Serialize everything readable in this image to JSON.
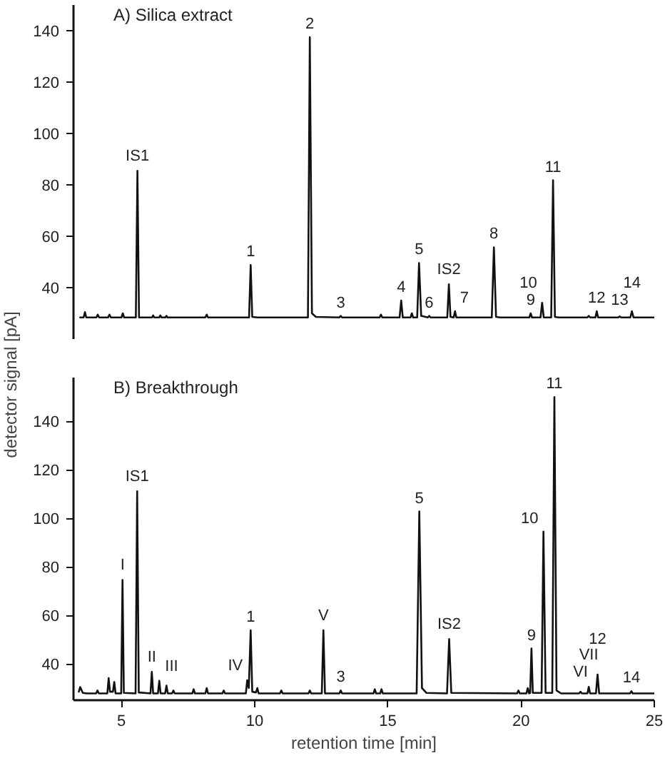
{
  "chart_data": [
    {
      "type": "line",
      "title": "A) Silica extract",
      "ylabel": "detector signal [pA]",
      "xlim": [
        3.2,
        25
      ],
      "ylim": [
        20,
        150
      ],
      "yticks": [
        40,
        60,
        80,
        100,
        120,
        140
      ],
      "xticks": [
        5,
        10,
        15,
        20,
        25
      ],
      "tick_labels": "y",
      "x": [
        3.45,
        3.58,
        3.63,
        3.68,
        4.06,
        4.11,
        4.16,
        4.5,
        4.55,
        4.6,
        5.0,
        5.05,
        5.1,
        5.54,
        5.6,
        5.66,
        6.15,
        6.19,
        6.23,
        6.42,
        6.46,
        6.5,
        6.65,
        6.69,
        6.73,
        8.15,
        8.2,
        8.25,
        9.79,
        9.85,
        9.91,
        10.1,
        12.0,
        12.07,
        12.15,
        12.3,
        13.18,
        13.23,
        13.28,
        14.69,
        14.74,
        14.79,
        15.44,
        15.5,
        15.56,
        15.85,
        15.9,
        15.95,
        16.1,
        16.17,
        16.25,
        16.5,
        16.55,
        16.6,
        17.23,
        17.29,
        17.35,
        17.47,
        17.52,
        17.57,
        18.9,
        18.98,
        19.06,
        19.2,
        20.31,
        20.36,
        20.41,
        20.73,
        20.79,
        20.85,
        21.13,
        21.2,
        21.27,
        21.4,
        22.49,
        22.54,
        22.59,
        22.79,
        22.84,
        22.89,
        23.65,
        23.7,
        23.75,
        24.1,
        24.16,
        24.22,
        25.0
      ],
      "series": [
        {
          "color": "#111111",
          "values": [
            28.4,
            28.4,
            30.5,
            28.4,
            28.4,
            29.5,
            28.4,
            28.4,
            29.5,
            28.4,
            28.4,
            30,
            28.4,
            28.4,
            85.5,
            28.4,
            28.4,
            29.2,
            28.4,
            28.4,
            29.2,
            28.4,
            28.4,
            29,
            28.4,
            28.4,
            29.5,
            28.4,
            28.4,
            48.8,
            28.6,
            28.4,
            28.4,
            137.5,
            30,
            28.6,
            28.4,
            29,
            28.4,
            28.4,
            29.5,
            28.4,
            28.4,
            35,
            28.4,
            28.4,
            30,
            28.4,
            28.4,
            49.6,
            29,
            28.4,
            29,
            28.4,
            28.4,
            41.3,
            28.6,
            28.4,
            30.8,
            28.4,
            28.4,
            55.7,
            28.6,
            28.4,
            28.4,
            30,
            28.4,
            28.4,
            34.1,
            28.4,
            28.4,
            81.8,
            28.6,
            28.4,
            28.4,
            29,
            28.4,
            28.4,
            30.8,
            28.4,
            28.4,
            28.8,
            28.4,
            28.4,
            30.8,
            28.4,
            28.4
          ]
        }
      ],
      "annotations": [
        {
          "text": "IS1",
          "x": 5.6,
          "y": 85.5
        },
        {
          "text": "1",
          "x": 9.85,
          "y": 48.8
        },
        {
          "text": "2",
          "x": 12.07,
          "y": 137.5
        },
        {
          "text": "3",
          "x": 13.23,
          "y": 29
        },
        {
          "text": "4",
          "x": 15.5,
          "y": 35
        },
        {
          "text": "5",
          "x": 16.17,
          "y": 49.6
        },
        {
          "text": "6",
          "x": 16.55,
          "y": 29
        },
        {
          "text": "IS2",
          "x": 17.29,
          "y": 41.3
        },
        {
          "text": "7",
          "x": 17.52,
          "y": 30.8
        },
        {
          "text": "8",
          "x": 18.98,
          "y": 55.7
        },
        {
          "text": "9",
          "x": 20.36,
          "y": 30
        },
        {
          "text": "10",
          "x": 20.79,
          "y": 34.1
        },
        {
          "text": "11",
          "x": 21.2,
          "y": 81.8
        },
        {
          "text": "12",
          "x": 22.84,
          "y": 30.8
        },
        {
          "text": "13",
          "x": 23.7,
          "y": 28.8
        },
        {
          "text": "14",
          "x": 24.16,
          "y": 30.8
        }
      ]
    },
    {
      "type": "line",
      "title": "B) Breakthrough",
      "xlabel": "retention time [min]",
      "xlim": [
        3.2,
        25
      ],
      "ylim": [
        25,
        158
      ],
      "yticks": [
        40,
        60,
        80,
        100,
        120,
        140
      ],
      "xticks": [
        5,
        10,
        15,
        20,
        25
      ],
      "x": [
        3.4,
        3.45,
        3.55,
        3.7,
        4.05,
        4.1,
        4.15,
        4.47,
        4.52,
        4.57,
        4.68,
        4.73,
        4.78,
        4.99,
        5.04,
        5.09,
        5.53,
        5.59,
        5.65,
        6.09,
        6.14,
        6.19,
        6.37,
        6.42,
        6.47,
        6.64,
        6.69,
        6.74,
        6.9,
        6.95,
        7.0,
        7.66,
        7.71,
        7.76,
        8.15,
        8.2,
        8.25,
        8.79,
        8.84,
        8.89,
        9.67,
        9.72,
        9.78,
        9.85,
        9.91,
        10.05,
        10.1,
        10.15,
        10.95,
        11.0,
        11.05,
        12.02,
        12.07,
        12.12,
        12.52,
        12.58,
        12.64,
        13.18,
        13.23,
        13.28,
        14.46,
        14.51,
        14.56,
        14.71,
        14.76,
        14.81,
        16.08,
        16.18,
        16.28,
        16.45,
        17.22,
        17.3,
        17.38,
        19.85,
        19.9,
        19.95,
        20.2,
        20.25,
        20.3,
        20.34,
        20.39,
        20.44,
        20.77,
        20.84,
        20.92,
        21.17,
        21.25,
        21.33,
        21.5,
        22.18,
        22.23,
        22.28,
        22.49,
        22.54,
        22.59,
        22.81,
        22.87,
        22.93,
        24.09,
        24.14,
        24.19,
        25.0
      ],
      "series": [
        {
          "color": "#111111",
          "values": [
            28.5,
            30.4,
            28,
            27.8,
            27.8,
            29,
            27.8,
            27.8,
            34.1,
            28.5,
            28.5,
            32.5,
            27.8,
            27.8,
            74.6,
            28,
            27.8,
            111.1,
            28.2,
            27.8,
            36.7,
            27.8,
            27.8,
            33,
            27.8,
            27.8,
            31,
            27.8,
            27.8,
            29,
            27.8,
            27.8,
            29.5,
            27.8,
            27.8,
            30,
            27.8,
            27.8,
            29,
            27.8,
            27.8,
            33.2,
            30,
            53.8,
            28.5,
            28.2,
            30,
            27.8,
            27.8,
            29,
            27.8,
            27.8,
            29,
            27.8,
            27.8,
            53.8,
            27.8,
            27.8,
            29,
            27.8,
            27.8,
            29.5,
            27.8,
            27.8,
            29.5,
            27.8,
            27.8,
            102.8,
            30,
            28,
            27.8,
            50.2,
            28,
            27.8,
            29,
            27.8,
            27.8,
            30,
            27.8,
            28,
            46.3,
            28,
            28,
            94.5,
            28,
            28,
            150,
            29,
            27.8,
            27.8,
            28.5,
            27.8,
            27.8,
            30.5,
            27.8,
            27.8,
            35.6,
            27.8,
            27.8,
            28.7,
            27.8,
            27.8
          ]
        }
      ],
      "annotations": [
        {
          "text": "I",
          "x": 5.04,
          "y": 74.6
        },
        {
          "text": "IS1",
          "x": 5.59,
          "y": 111.1
        },
        {
          "text": "II",
          "x": 6.14,
          "y": 36.7
        },
        {
          "text": "III",
          "x": 6.42,
          "y": 33
        },
        {
          "text": "IV",
          "x": 9.72,
          "y": 33.2
        },
        {
          "text": "1",
          "x": 9.85,
          "y": 53.8
        },
        {
          "text": "V",
          "x": 12.58,
          "y": 53.8
        },
        {
          "text": "3",
          "x": 13.23,
          "y": 29
        },
        {
          "text": "5",
          "x": 16.18,
          "y": 102.8
        },
        {
          "text": "IS2",
          "x": 17.3,
          "y": 50.2
        },
        {
          "text": "9",
          "x": 20.39,
          "y": 46.3
        },
        {
          "text": "10",
          "x": 20.84,
          "y": 94.5
        },
        {
          "text": "11",
          "x": 21.25,
          "y": 150
        },
        {
          "text": "VI",
          "x": 22.23,
          "y": 28.5
        },
        {
          "text": "VII",
          "x": 22.54,
          "y": 30.5
        },
        {
          "text": "12",
          "x": 22.87,
          "y": 35.6
        },
        {
          "text": "14",
          "x": 24.14,
          "y": 28.7
        }
      ]
    }
  ]
}
